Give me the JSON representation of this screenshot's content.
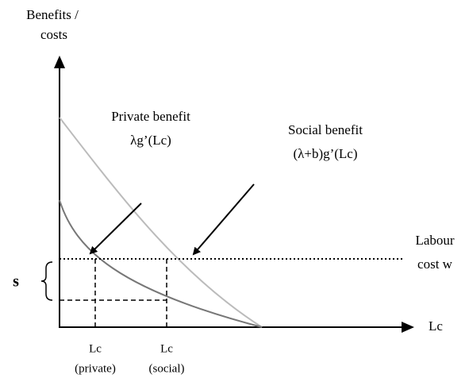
{
  "y_axis_label": [
    "Benefits /",
    "costs"
  ],
  "x_axis_label": "Lc",
  "private_benefit": {
    "name": "Private benefit",
    "formula": "λg’(Lc)"
  },
  "social_benefit": {
    "name": "Social benefit",
    "formula": "(λ+b)g’(Lc)"
  },
  "labour_cost": [
    "Labour",
    "cost w"
  ],
  "subsidy_label": "s",
  "x_markers": [
    {
      "label": "Lc",
      "sub": "(private)"
    },
    {
      "label": "Lc",
      "sub": "(social)"
    }
  ]
}
